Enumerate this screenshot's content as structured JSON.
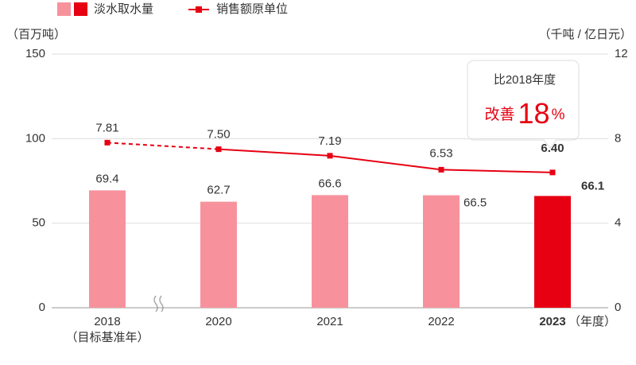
{
  "chart_data": {
    "type": "bar_line",
    "categories": [
      "2018",
      "2020",
      "2021",
      "2022",
      "2023"
    ],
    "category_note": "（目标基准年）",
    "x_unit": "（年度）",
    "y_label": "（百万吨）",
    "y2_label": "（千吨 / 亿日元）",
    "ylim": [
      0,
      150
    ],
    "yticks": [
      0,
      50,
      100,
      150
    ],
    "y2lim": [
      0,
      12
    ],
    "y2ticks": [
      0,
      4,
      8,
      12
    ],
    "grid": true,
    "series": [
      {
        "name": "淡水取水量",
        "type": "bar",
        "color": "#f7929d",
        "highlight_color": "#e60012",
        "values": [
          69.4,
          62.7,
          66.6,
          66.5,
          66.1
        ]
      },
      {
        "name": "销售额原单位",
        "type": "line",
        "axis": "y2",
        "color": "#e60012",
        "first_segment_dashed": true,
        "values": [
          7.81,
          7.5,
          7.19,
          6.53,
          6.4
        ],
        "value_labels": [
          "7.81",
          "7.50",
          "7.19",
          "6.53",
          "6.40"
        ]
      }
    ],
    "annotation": {
      "line1": "比2018年度",
      "prefix": "改善",
      "value": "18",
      "unit": "%"
    }
  }
}
